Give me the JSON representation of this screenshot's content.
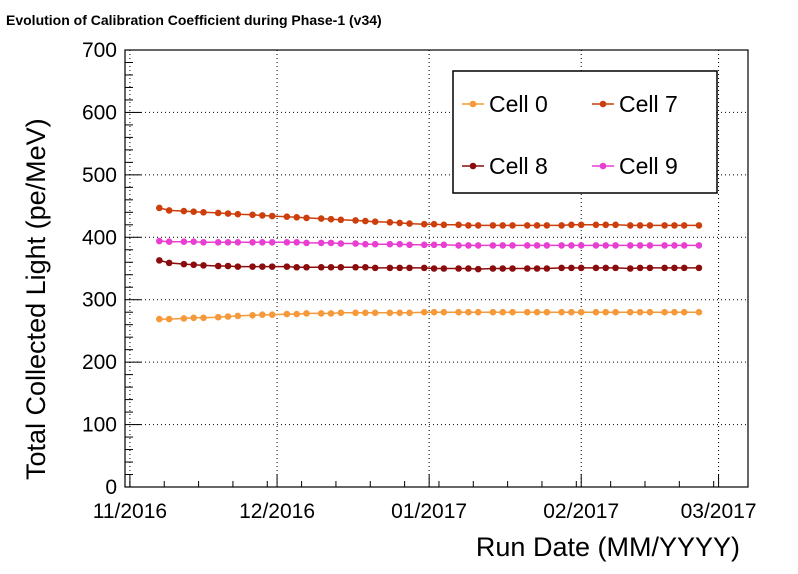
{
  "chart_data": {
    "type": "line",
    "title": "Evolution of Calibration Coefficient during Phase-1 (v34)",
    "xlabel": "Run Date (MM/YYYY)",
    "ylabel": "Total Collected Light (pe/MeV)",
    "xlim": [
      "2016-10-31",
      "2017-03-07"
    ],
    "ylim": [
      0,
      700
    ],
    "yticks": [
      0,
      100,
      200,
      300,
      400,
      500,
      600,
      700
    ],
    "xticks": [
      {
        "date": "2016-11-01",
        "label": "11/2016"
      },
      {
        "date": "2016-12-01",
        "label": "12/2016"
      },
      {
        "date": "2017-01-01",
        "label": "01/2017"
      },
      {
        "date": "2017-02-01",
        "label": "02/2017"
      },
      {
        "date": "2017-03-01",
        "label": "03/2017"
      }
    ],
    "grid": true,
    "legend_position": "top-right",
    "x": [
      "2016-11-07",
      "2016-11-09",
      "2016-11-12",
      "2016-11-14",
      "2016-11-16",
      "2016-11-19",
      "2016-11-21",
      "2016-11-23",
      "2016-11-26",
      "2016-11-28",
      "2016-11-30",
      "2016-12-03",
      "2016-12-05",
      "2016-12-07",
      "2016-12-10",
      "2016-12-12",
      "2016-12-14",
      "2016-12-17",
      "2016-12-19",
      "2016-12-21",
      "2016-12-24",
      "2016-12-26",
      "2016-12-28",
      "2016-12-31",
      "2017-01-02",
      "2017-01-04",
      "2017-01-07",
      "2017-01-09",
      "2017-01-11",
      "2017-01-14",
      "2017-01-16",
      "2017-01-18",
      "2017-01-21",
      "2017-01-23",
      "2017-01-25",
      "2017-01-28",
      "2017-01-30",
      "2017-02-01",
      "2017-02-04",
      "2017-02-06",
      "2017-02-08",
      "2017-02-11",
      "2017-02-13",
      "2017-02-15",
      "2017-02-18",
      "2017-02-20",
      "2017-02-22",
      "2017-02-25"
    ],
    "series": [
      {
        "name": "Cell 0",
        "color": "#f5993a",
        "values": [
          269,
          269,
          270,
          271,
          271,
          272,
          273,
          274,
          275,
          276,
          276,
          277,
          277,
          278,
          278,
          278,
          279,
          279,
          279,
          279,
          279,
          279,
          279,
          280,
          280,
          280,
          280,
          280,
          280,
          280,
          280,
          280,
          280,
          280,
          280,
          280,
          280,
          280,
          280,
          280,
          280,
          280,
          280,
          280,
          280,
          280,
          280,
          280
        ]
      },
      {
        "name": "Cell 7",
        "color": "#cc3f0c",
        "values": [
          447,
          443,
          442,
          441,
          440,
          439,
          438,
          437,
          436,
          435,
          434,
          433,
          432,
          431,
          430,
          429,
          428,
          427,
          426,
          425,
          424,
          423,
          422,
          421,
          421,
          420,
          420,
          419,
          419,
          419,
          419,
          419,
          419,
          419,
          419,
          419,
          420,
          420,
          420,
          420,
          420,
          419,
          419,
          419,
          419,
          419,
          419,
          419
        ]
      },
      {
        "name": "Cell 8",
        "color": "#8b0c0c",
        "values": [
          363,
          359,
          357,
          356,
          355,
          354,
          354,
          353,
          353,
          353,
          353,
          353,
          352,
          352,
          352,
          352,
          352,
          352,
          352,
          351,
          351,
          351,
          351,
          351,
          350,
          350,
          350,
          350,
          349,
          350,
          350,
          350,
          350,
          350,
          350,
          351,
          351,
          351,
          351,
          351,
          351,
          350,
          351,
          351,
          351,
          351,
          351,
          351
        ]
      },
      {
        "name": "Cell 9",
        "color": "#e83fd2",
        "values": [
          394,
          393,
          393,
          393,
          392,
          392,
          392,
          392,
          392,
          392,
          392,
          392,
          392,
          391,
          391,
          391,
          390,
          390,
          389,
          389,
          389,
          389,
          388,
          388,
          388,
          388,
          387,
          387,
          387,
          387,
          387,
          387,
          387,
          387,
          387,
          387,
          387,
          387,
          387,
          387,
          387,
          387,
          387,
          387,
          387,
          387,
          387,
          387
        ]
      }
    ]
  }
}
